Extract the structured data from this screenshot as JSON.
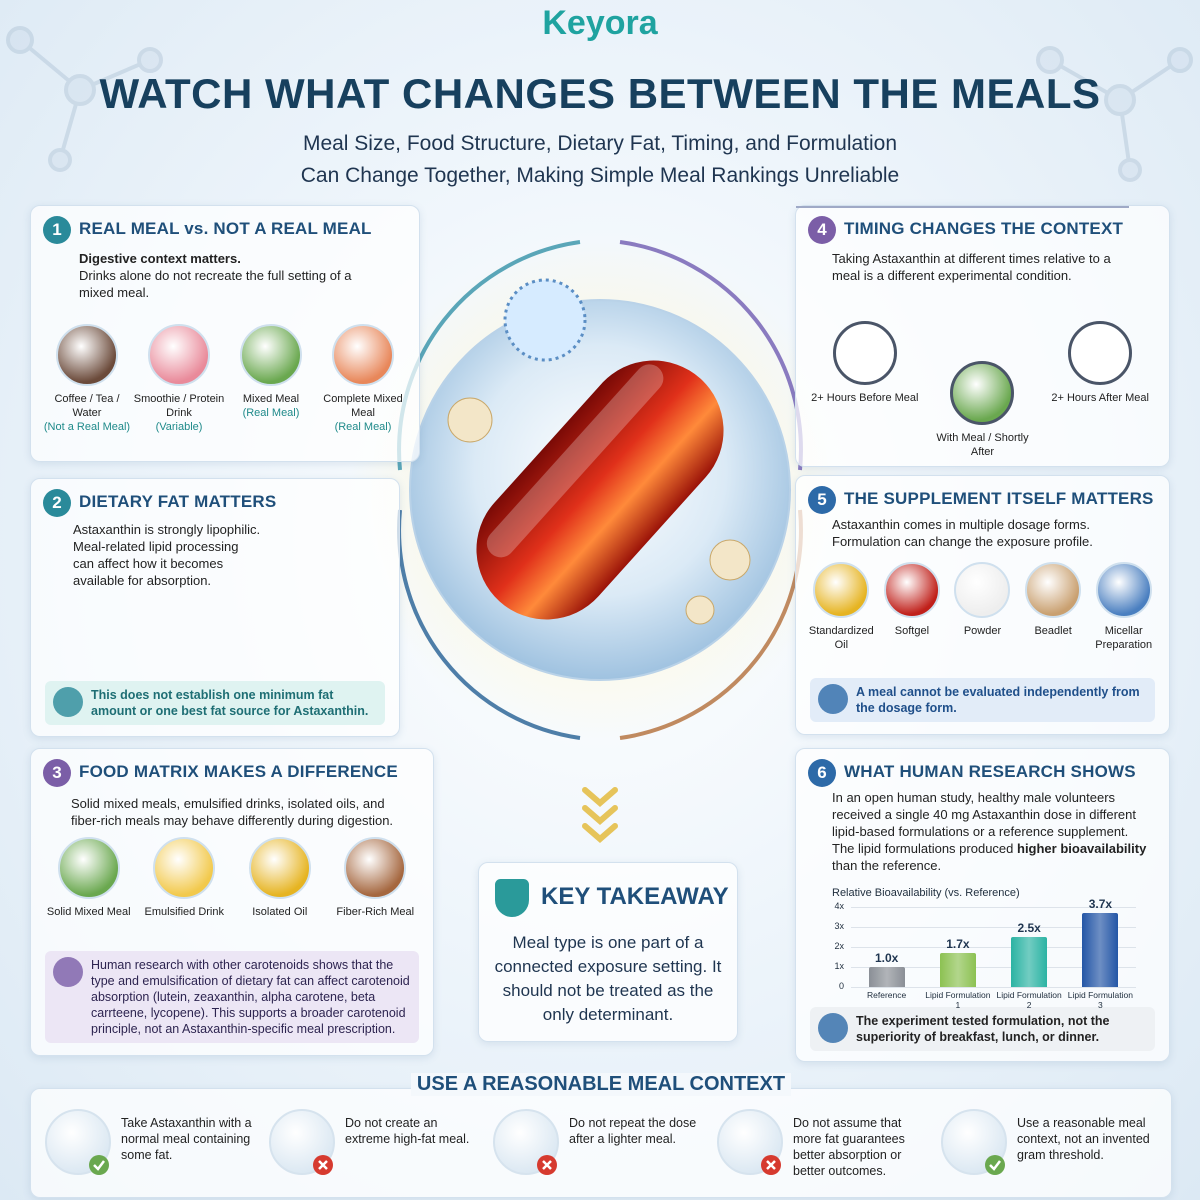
{
  "header": {
    "brand": "Keyora",
    "title": "WATCH WHAT CHANGES BETWEEN THE MEALS",
    "subtitle": [
      "Meal Size, Food Structure, Dietary Fat, Timing, and Formulation",
      "Can Change Together, Making Simple Meal Rankings Unreliable"
    ]
  },
  "sections": [
    {
      "number": "1",
      "title": "REAL MEAL vs. NOT A REAL MEAL",
      "lead": "Digestive context matters.",
      "body": "Drinks alone do not recreate the full setting of a mixed meal.",
      "items": [
        {
          "label": "Coffee / Tea / Water",
          "note": "(Not a Real Meal)"
        },
        {
          "label": "Smoothie / Protein Drink",
          "note": "(Variable)"
        },
        {
          "label": "Mixed Meal",
          "note": "(Real Meal)"
        },
        {
          "label": "Complete Mixed Meal",
          "note": "(Real Meal)"
        }
      ]
    },
    {
      "number": "2",
      "title": "DIETARY FAT MATTERS",
      "body": "Astaxanthin is strongly lipophilic. Meal-related lipid processing can affect how it becomes available for absorption.",
      "note": "This does not establish one minimum fat amount or one best fat source for Astaxanthin."
    },
    {
      "number": "3",
      "title": "FOOD MATRIX MAKES A DIFFERENCE",
      "body": "Solid mixed meals, emulsified drinks, isolated oils, and fiber-rich meals may behave differently during digestion.",
      "items": [
        {
          "label": "Solid Mixed Meal"
        },
        {
          "label": "Emulsified Drink"
        },
        {
          "label": "Isolated Oil"
        },
        {
          "label": "Fiber-Rich Meal"
        }
      ],
      "note": "Human research with other carotenoids shows that the type and emulsification of dietary fat can affect carotenoid absorption (lutein, zeaxanthin, alpha carotene, beta carrteene, lycopene). This supports a broader carotenoid principle, not an Astaxanthin-specific meal prescription."
    },
    {
      "number": "4",
      "title": "TIMING CHANGES THE CONTEXT",
      "body": "Taking Astaxanthin at different times relative to a meal is a different experimental condition.",
      "items": [
        {
          "label": "2+ Hours Before Meal"
        },
        {
          "label": "With Meal / Shortly After"
        },
        {
          "label": "2+ Hours After Meal"
        }
      ]
    },
    {
      "number": "5",
      "title": "THE SUPPLEMENT ITSELF MATTERS",
      "body": "Astaxanthin comes in multiple dosage forms. Formulation can change the exposure profile.",
      "items": [
        {
          "label": "Standardized Oil"
        },
        {
          "label": "Softgel"
        },
        {
          "label": "Powder"
        },
        {
          "label": "Beadlet"
        },
        {
          "label": "Micellar Preparation"
        }
      ],
      "note": "A meal cannot be evaluated independently from the dosage form."
    },
    {
      "number": "6",
      "title": "WHAT HUMAN RESEARCH SHOWS",
      "body": [
        "In an open human study, healthy male volunteers received a single 40 mg Astaxanthin dose in different lipid-based formulations or a reference supplement. The lipid formulations produced ",
        "higher bioavailability",
        " than the reference."
      ],
      "note": "The experiment tested formulation, not the superiority of breakfast, lunch, or dinner."
    }
  ],
  "chart_data": {
    "type": "bar",
    "title": "Relative Bioavailability (vs. Reference)",
    "categories": [
      "Reference",
      "Lipid Formulation 1",
      "Lipid Formulation 2",
      "Lipid Formulation 3"
    ],
    "values": [
      1.0,
      1.7,
      2.5,
      3.7
    ],
    "value_labels": [
      "1.0x",
      "1.7x",
      "2.5x",
      "3.7x"
    ],
    "colors": [
      "#8a8f96",
      "#8cc152",
      "#2bb3a3",
      "#2456a6"
    ],
    "ylim": [
      0,
      4
    ],
    "yticks": [
      0,
      {
        "value": 1,
        "label": "1x"
      },
      {
        "value": 2,
        "label": "2x"
      },
      {
        "value": 3,
        "label": "3x"
      },
      {
        "value": 4,
        "label": "4x"
      }
    ]
  },
  "takeaway": {
    "title": "KEY TAKEAWAY",
    "text": "Meal type is one part of a connected exposure setting. It should not be treated as the only determinant."
  },
  "footer": {
    "title": "USE A REASONABLE MEAL CONTEXT",
    "items": [
      {
        "text": "Take Astaxanthin with a normal meal containing some fat.",
        "ok": true
      },
      {
        "text": "Do not create an extreme high-fat meal.",
        "ok": false
      },
      {
        "text": "Do not repeat the dose after a lighter meal.",
        "ok": false
      },
      {
        "text": "Do not assume that more fat guarantees better absorption or better outcomes.",
        "ok": false
      },
      {
        "text": "Use a reasonable meal context, not an invented gram threshold.",
        "ok": true
      }
    ]
  }
}
